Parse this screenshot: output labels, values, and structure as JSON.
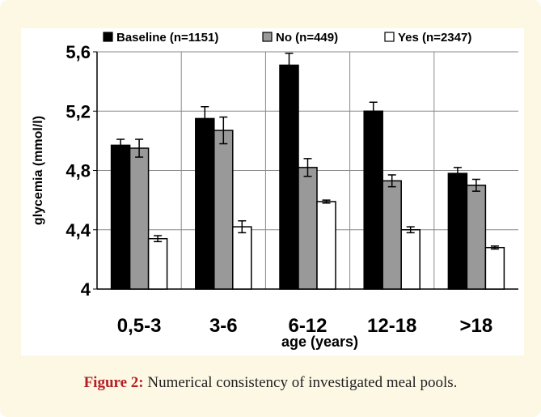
{
  "caption": {
    "label": "Figure 2:",
    "text": "Numerical consistency of investigated meal pools."
  },
  "chart_data": {
    "type": "bar",
    "categories": [
      "0,5-3",
      "3-6",
      "6-12",
      "12-18",
      ">18"
    ],
    "series": [
      {
        "name": "Baseline (n=1151)",
        "color": "#000000",
        "values": [
          4.97,
          5.15,
          5.51,
          5.2,
          4.78
        ],
        "errors": [
          0.04,
          0.08,
          0.08,
          0.06,
          0.04
        ]
      },
      {
        "name": "No (n=449)",
        "color": "#999999",
        "values": [
          4.95,
          5.07,
          4.82,
          4.73,
          4.7
        ],
        "errors": [
          0.06,
          0.09,
          0.06,
          0.04,
          0.04
        ]
      },
      {
        "name": "Yes (n=2347)",
        "color": "#ffffff",
        "values": [
          4.34,
          4.42,
          4.59,
          4.4,
          4.28
        ],
        "errors": [
          0.02,
          0.04,
          0.01,
          0.02,
          0.01
        ]
      }
    ],
    "ylim": [
      4,
      5.6
    ],
    "yticks": [
      "4",
      "4,4",
      "4,8",
      "5,2",
      "5,6"
    ],
    "xlabel": "age (years)",
    "ylabel": "glycemia (mmol/l)",
    "grid": true,
    "legend_position": "top"
  }
}
